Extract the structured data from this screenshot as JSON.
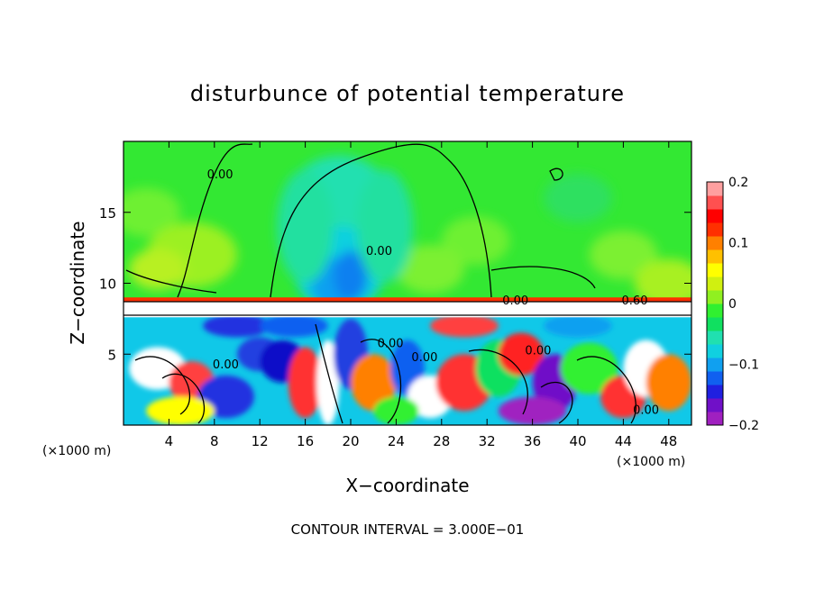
{
  "chart_data": {
    "type": "heatmap",
    "title": "disturbunce of potential temperature",
    "xlabel": "X−coordinate",
    "ylabel": "Z−coordinate",
    "x_unit_label_left": "(×1000 m)",
    "x_unit_label_right": "(×1000 m)",
    "xlim": [
      0,
      50
    ],
    "ylim": [
      0,
      20
    ],
    "x_ticks": [
      4,
      8,
      12,
      16,
      20,
      24,
      28,
      32,
      36,
      40,
      44,
      48
    ],
    "y_ticks": [
      5,
      10,
      15
    ],
    "footer": "CONTOUR INTERVAL = 3.000E−01",
    "contour_labels": [
      {
        "text": "0.00",
        "x": 8.5,
        "y": 17.4
      },
      {
        "text": "0.00",
        "x": 22.5,
        "y": 12.0
      },
      {
        "text": "0.00",
        "x": 9.0,
        "y": 4.0
      },
      {
        "text": "0.00",
        "x": 23.5,
        "y": 5.5
      },
      {
        "text": "0.00",
        "x": 26.5,
        "y": 4.5
      },
      {
        "text": "0.00",
        "x": 36.5,
        "y": 5.0
      },
      {
        "text": "0.00",
        "x": 46.0,
        "y": 0.8
      },
      {
        "text": "0.00",
        "x": 34.5,
        "y": 8.5
      },
      {
        "text": "0.60",
        "x": 45.0,
        "y": 8.5
      }
    ],
    "colorbar": {
      "ticks": [
        {
          "value": 0.2,
          "label": "0.2"
        },
        {
          "value": 0.1,
          "label": "0.1"
        },
        {
          "value": 0.0,
          "label": "0"
        },
        {
          "value": -0.1,
          "label": "−0.1"
        },
        {
          "value": -0.2,
          "label": "−0.2"
        }
      ],
      "range": [
        -0.2,
        0.2
      ],
      "colors": [
        "#a020c0",
        "#7010c8",
        "#2020e0",
        "#1060f0",
        "#10a0f0",
        "#10d0e0",
        "#20e0b0",
        "#10e060",
        "#30f030",
        "#90f020",
        "#d0f010",
        "#ffff00",
        "#ffc000",
        "#ff8000",
        "#ff3000",
        "#ff0000",
        "#ff5050",
        "#ffa0a0"
      ]
    }
  }
}
